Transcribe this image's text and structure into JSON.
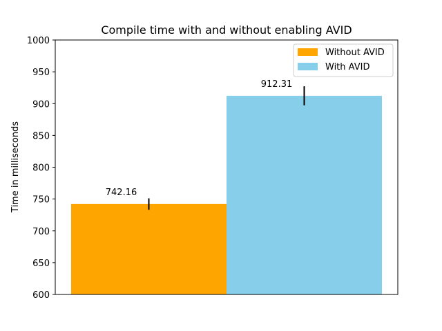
{
  "chart_data": {
    "type": "bar",
    "title": "Compile time with and without enabling AVID",
    "xlabel": "",
    "ylabel": "Time in milliseconds",
    "ylim": [
      600,
      1000
    ],
    "yticks": [
      600,
      650,
      700,
      750,
      800,
      850,
      900,
      950,
      1000
    ],
    "grid": false,
    "legend_position": "top-right",
    "series": [
      {
        "name": "Without AVID",
        "value": 742.16,
        "error": 9,
        "label": "742.16",
        "color": "#FFA500"
      },
      {
        "name": "With AVID",
        "value": 912.31,
        "error": 15,
        "label": "912.31",
        "color": "#87CEEB"
      }
    ]
  }
}
